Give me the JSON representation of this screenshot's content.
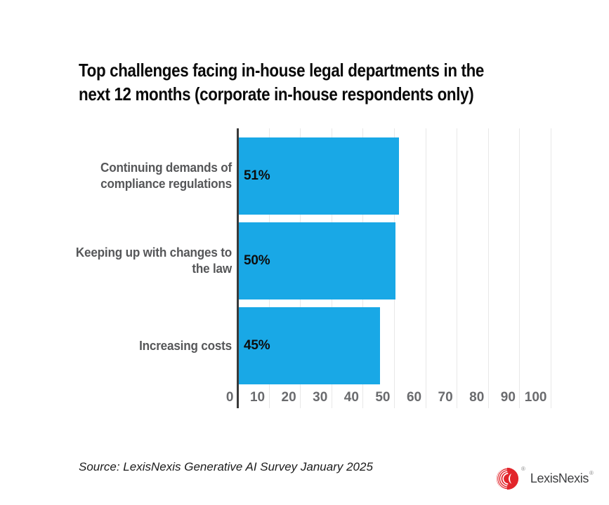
{
  "page": {
    "background": "#ffffff"
  },
  "title": {
    "line1": "Top challenges facing in-house legal departments in the",
    "line2": "next 12 months (corporate in-house respondents only)"
  },
  "source_note": "Source: LexisNexis Generative AI Survey January 2025",
  "logo": {
    "brand": "LexisNexis",
    "registered_mark": "®",
    "icon": "lexisnexis-orb-icon",
    "icon_color": "#e2252b",
    "text_color": "#3f4042"
  },
  "chart_data": {
    "type": "bar",
    "orientation": "horizontal",
    "title": "Top challenges facing in-house legal departments in the next 12 months (corporate in-house respondents only)",
    "categories": [
      "Continuing demands of\ncompliance regulations",
      "Keeping up with changes to\nthe law",
      "Increasing costs"
    ],
    "values": [
      51,
      50,
      45
    ],
    "value_labels": [
      "51%",
      "50%",
      "45%"
    ],
    "xlabel": "",
    "ylabel": "",
    "xlim": [
      0,
      100
    ],
    "xticks": [
      0,
      10,
      20,
      30,
      40,
      50,
      60,
      70,
      80,
      90,
      100
    ],
    "grid": "vertical",
    "legend": "none",
    "bar_color": "#19a8e6",
    "category_label_color": "#565759",
    "tick_label_color": "#6a6b6e",
    "value_label_color": "#0d0d0d",
    "axis_line_color": "#3a3a3a",
    "gridline_color": "#e8e8e8"
  }
}
